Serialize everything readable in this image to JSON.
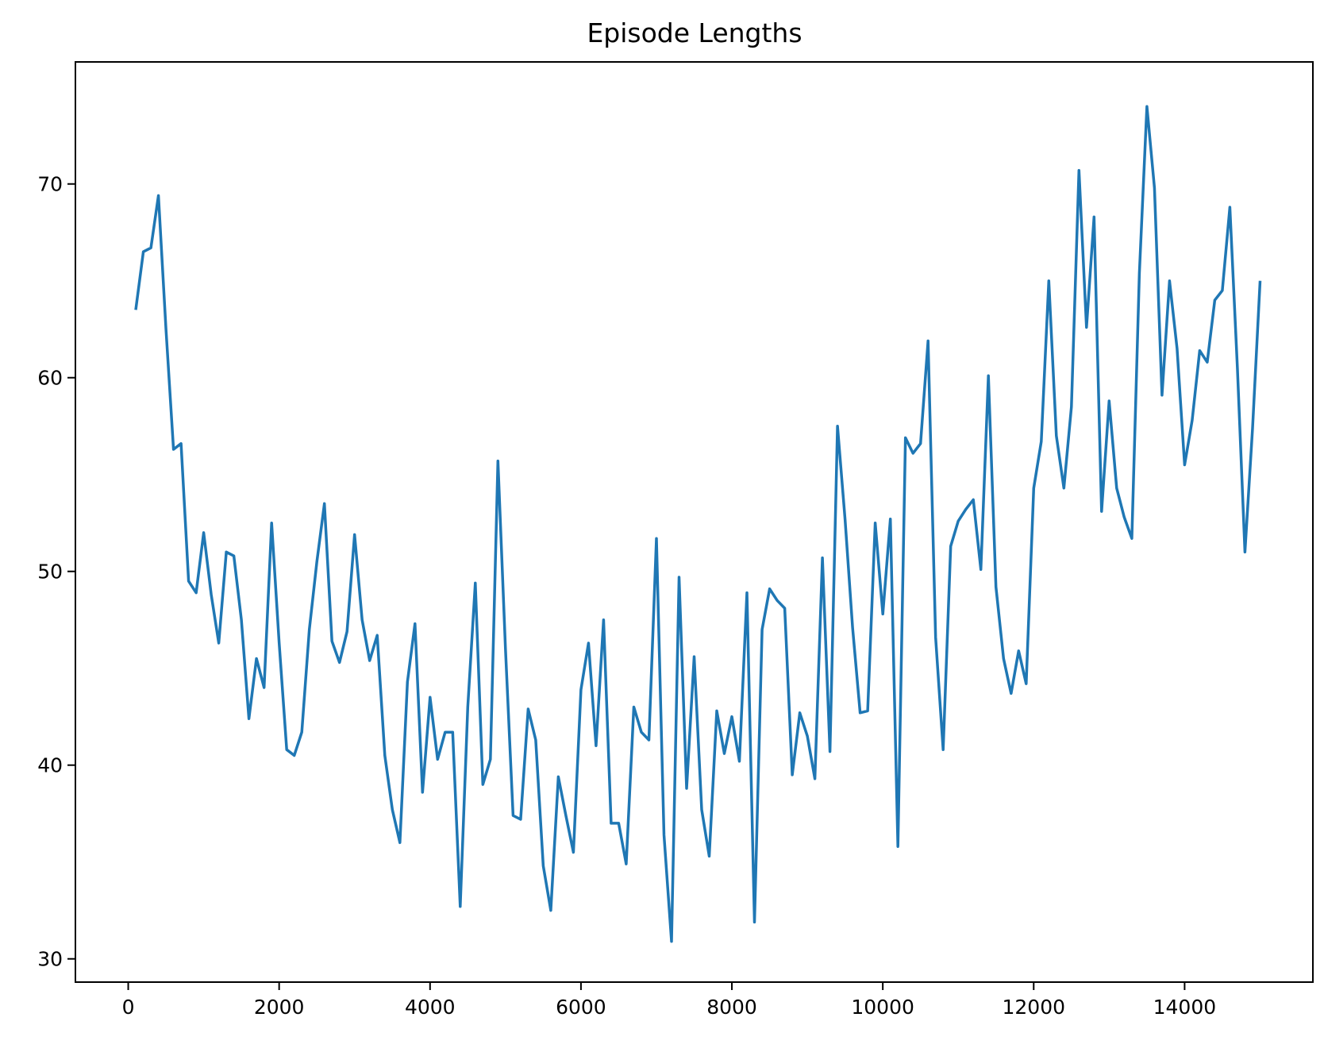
{
  "chart_data": {
    "type": "line",
    "title": "Episode Lengths",
    "xlabel": "",
    "ylabel": "",
    "xlim": [
      -700,
      15700
    ],
    "ylim": [
      28.8,
      76.3
    ],
    "xticks": [
      0,
      2000,
      4000,
      6000,
      8000,
      10000,
      12000,
      14000
    ],
    "xtick_labels": [
      "0",
      "2000",
      "4000",
      "6000",
      "8000",
      "10000",
      "12000",
      "14000"
    ],
    "yticks": [
      30,
      40,
      50,
      60,
      70
    ],
    "ytick_labels": [
      "30",
      "40",
      "50",
      "60",
      "70"
    ],
    "grid": false,
    "legend": "none",
    "colors": {
      "line": "#1f77b4",
      "axes": "#000000",
      "background": "#ffffff"
    },
    "series": [
      {
        "x": [
          100,
          200,
          300,
          400,
          500,
          600,
          700,
          800,
          900,
          1000,
          1100,
          1200,
          1300,
          1400,
          1500,
          1600,
          1700,
          1800,
          1900,
          2000,
          2100,
          2200,
          2300,
          2400,
          2500,
          2600,
          2700,
          2800,
          2900,
          3000,
          3100,
          3200,
          3300,
          3400,
          3500,
          3600,
          3700,
          3800,
          3900,
          4000,
          4100,
          4200,
          4300,
          4400,
          4500,
          4600,
          4700,
          4800,
          4900,
          5000,
          5100,
          5200,
          5300,
          5400,
          5500,
          5600,
          5700,
          5800,
          5900,
          6000,
          6100,
          6200,
          6300,
          6400,
          6500,
          6600,
          6700,
          6800,
          6900,
          7000,
          7100,
          7200,
          7300,
          7400,
          7500,
          7600,
          7700,
          7800,
          7900,
          8000,
          8100,
          8200,
          8300,
          8400,
          8500,
          8600,
          8700,
          8800,
          8900,
          9000,
          9100,
          9200,
          9300,
          9400,
          9500,
          9600,
          9700,
          9800,
          9900,
          10000,
          10100,
          10200,
          10300,
          10400,
          10500,
          10600,
          10700,
          10800,
          10900,
          11000,
          11100,
          11200,
          11300,
          11400,
          11500,
          11600,
          11700,
          11800,
          11900,
          12000,
          12100,
          12200,
          12300,
          12400,
          12500,
          12600,
          12700,
          12800,
          12900,
          13000,
          13100,
          13200,
          13300,
          13400,
          13500,
          13600,
          13700,
          13800,
          13900,
          14000,
          14100,
          14200,
          14300,
          14400,
          14500,
          14600,
          14700,
          14800,
          14900,
          15000
        ],
        "values": [
          63.5,
          66.5,
          66.7,
          69.4,
          62.5,
          56.3,
          56.6,
          49.5,
          48.9,
          52.0,
          48.8,
          46.3,
          51.0,
          50.8,
          47.5,
          42.4,
          45.5,
          44.0,
          52.5,
          46.3,
          40.8,
          40.5,
          41.7,
          47.0,
          50.5,
          53.5,
          46.4,
          45.3,
          46.9,
          51.9,
          47.5,
          45.4,
          46.7,
          40.5,
          37.7,
          36.0,
          44.3,
          47.3,
          38.6,
          43.5,
          40.3,
          41.7,
          41.7,
          32.7,
          43.0,
          49.4,
          39.0,
          40.3,
          55.7,
          46.0,
          37.4,
          37.2,
          42.9,
          41.3,
          34.8,
          32.5,
          39.4,
          37.4,
          35.5,
          43.9,
          46.3,
          41.0,
          47.5,
          37.0,
          37.0,
          34.9,
          43.0,
          41.7,
          41.3,
          51.7,
          36.4,
          30.9,
          49.7,
          38.8,
          45.6,
          37.7,
          35.3,
          42.8,
          40.6,
          42.5,
          40.2,
          48.9,
          31.9,
          47.0,
          49.1,
          48.5,
          48.1,
          39.5,
          42.7,
          41.5,
          39.3,
          50.7,
          40.7,
          57.5,
          52.7,
          47.1,
          42.7,
          42.8,
          52.5,
          47.8,
          52.7,
          35.8,
          56.9,
          56.1,
          56.6,
          61.9,
          46.6,
          40.8,
          51.3,
          52.6,
          53.2,
          53.7,
          50.1,
          60.1,
          49.2,
          45.5,
          43.7,
          45.9,
          44.2,
          54.3,
          56.7,
          65.0,
          57.0,
          54.3,
          58.5,
          70.7,
          62.6,
          68.3,
          53.1,
          58.8,
          54.3,
          52.8,
          51.7,
          65.4,
          74.0,
          69.8,
          59.1,
          65.0,
          61.5,
          55.5,
          57.8,
          61.4,
          60.8,
          64.0,
          64.5,
          68.8,
          60.5,
          51.0,
          57.4,
          65.0
        ]
      }
    ]
  }
}
